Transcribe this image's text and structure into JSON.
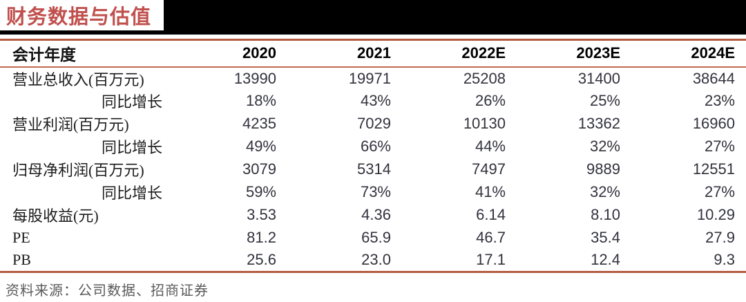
{
  "title": "财务数据与估值",
  "colors": {
    "title_red": "#C0504D",
    "rule_red": "#B45A41",
    "banner_black": "#000000",
    "number_text": "#32323e",
    "source_gray": "#595959"
  },
  "table": {
    "header": {
      "label": "会计年度",
      "years": [
        "2020",
        "2021",
        "2022E",
        "2023E",
        "2024E"
      ]
    },
    "rows": [
      {
        "label": "营业总收入(百万元)",
        "values": [
          "13990",
          "19971",
          "25208",
          "31400",
          "38644"
        ]
      },
      {
        "label": "同比增长",
        "values": [
          "18%",
          "43%",
          "26%",
          "25%",
          "23%"
        ]
      },
      {
        "label": "营业利润(百万元)",
        "values": [
          "4235",
          "7029",
          "10130",
          "13362",
          "16960"
        ]
      },
      {
        "label": "同比增长",
        "values": [
          "49%",
          "66%",
          "44%",
          "32%",
          "27%"
        ]
      },
      {
        "label": "归母净利润(百万元)",
        "values": [
          "3079",
          "5314",
          "7497",
          "9889",
          "12551"
        ]
      },
      {
        "label": "同比增长",
        "values": [
          "59%",
          "73%",
          "41%",
          "32%",
          "27%"
        ]
      },
      {
        "label": "每股收益(元)",
        "values": [
          "3.53",
          "4.36",
          "6.14",
          "8.10",
          "10.29"
        ]
      },
      {
        "label": "PE",
        "values": [
          "81.2",
          "65.9",
          "46.7",
          "35.4",
          "27.9"
        ]
      },
      {
        "label": "PB",
        "values": [
          "25.6",
          "23.0",
          "17.1",
          "12.4",
          "9.3"
        ]
      }
    ]
  },
  "footer": {
    "source_text": "资料来源：公司数据、招商证券"
  }
}
